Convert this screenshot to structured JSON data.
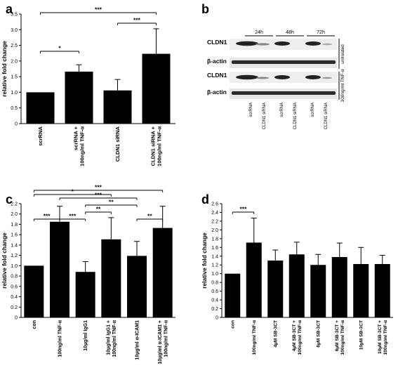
{
  "panels": {
    "a": "a",
    "b": "b",
    "c": "c",
    "d": "d"
  },
  "chart_data": [
    {
      "panel": "a",
      "type": "bar",
      "categories": [
        "scrRNA",
        "scrRNA + 100ng/ml TNF-α",
        "CLDN1 siRNA",
        "CLDN1 siRNA + 100ng/ml TNF-α"
      ],
      "values": [
        1.0,
        1.66,
        1.06,
        2.23
      ],
      "errors": [
        0.0,
        0.22,
        0.35,
        0.8
      ],
      "ylabel": "relative fold change",
      "ylim": [
        0,
        3.5
      ],
      "yticks": [
        "0",
        "0.5",
        "1.0",
        "1.5",
        "2.0",
        "2.5",
        "3.0",
        "3.5"
      ],
      "significance": [
        {
          "from": 0,
          "to": 1,
          "label": "*"
        },
        {
          "from": 2,
          "to": 3,
          "label": "***"
        },
        {
          "from": 0,
          "to": 3,
          "label": "***"
        }
      ]
    },
    {
      "panel": "c",
      "type": "bar",
      "categories": [
        "con",
        "100ng/ml TNF-α",
        "10µg/ml IgG1",
        "10µg/ml IgG1 + 100ng/ml TNF-α",
        "10µg/ml α-ICAM1",
        "10µg/ml α-ICAM1 + 100ng/ml TNF-α"
      ],
      "values": [
        1.0,
        1.85,
        0.88,
        1.51,
        1.19,
        1.73
      ],
      "errors": [
        0.0,
        0.3,
        0.2,
        0.42,
        0.28,
        0.42
      ],
      "ylabel": "relative fold change",
      "ylim": [
        0,
        2.2
      ],
      "yticks": [
        "0",
        "0.2",
        "0.4",
        "0.6",
        "0.8",
        "1.0",
        "1.2",
        "1.4",
        "1.6",
        "1.8",
        "2.0",
        "2.2"
      ],
      "significance": [
        {
          "from": 0,
          "to": 1,
          "label": "***"
        },
        {
          "from": 1,
          "to": 2,
          "label": "***"
        },
        {
          "from": 2,
          "to": 3,
          "label": "**"
        },
        {
          "from": 4,
          "to": 5,
          "label": "**"
        },
        {
          "from": 2,
          "to": 4,
          "label": "**"
        },
        {
          "from": 1,
          "to": 4,
          "label": "***"
        },
        {
          "from": 0,
          "to": 3,
          "label": "*"
        },
        {
          "from": 0,
          "to": 5,
          "label": "***"
        }
      ]
    },
    {
      "panel": "d",
      "type": "bar",
      "categories": [
        "con",
        "100ng/ml TNF-α",
        "4µM SB-3CT",
        "4µM SB-3CT + 100ng/ml TNF-α",
        "6µM SB-3CT",
        "6µM SB-3CT + 100ng/ml TNF-α",
        "10µM SB-3CT",
        "10µM SB-3CT + 100ng/ml TNF-α"
      ],
      "values": [
        1.0,
        1.71,
        1.3,
        1.44,
        1.2,
        1.38,
        1.22,
        1.22
      ],
      "errors": [
        0.0,
        0.56,
        0.24,
        0.28,
        0.24,
        0.32,
        0.38,
        0.2
      ],
      "ylabel": "relative fold change",
      "ylim": [
        0,
        2.6
      ],
      "yticks": [
        "0",
        "0.2",
        "0.4",
        "0.6",
        "0.8",
        "1.0",
        "1.2",
        "1.4",
        "1.6",
        "1.8",
        "2.0",
        "2.2",
        "2.4",
        "2.6"
      ],
      "significance": [
        {
          "from": 0,
          "to": 1,
          "label": "***"
        }
      ]
    }
  ],
  "blot": {
    "timepoints": [
      "24h",
      "48h",
      "72h"
    ],
    "rows": [
      "CLDN1",
      "β-actin",
      "CLDN1",
      "β-actin"
    ],
    "conditions": [
      "untreated",
      "100ng/ml TNF-α"
    ],
    "lanes": [
      "scrRNA",
      "CLDN1 siRNA",
      "scrRNA",
      "CLDN1 siRNA",
      "scrRNA",
      "CLDN1 siRNA"
    ]
  }
}
